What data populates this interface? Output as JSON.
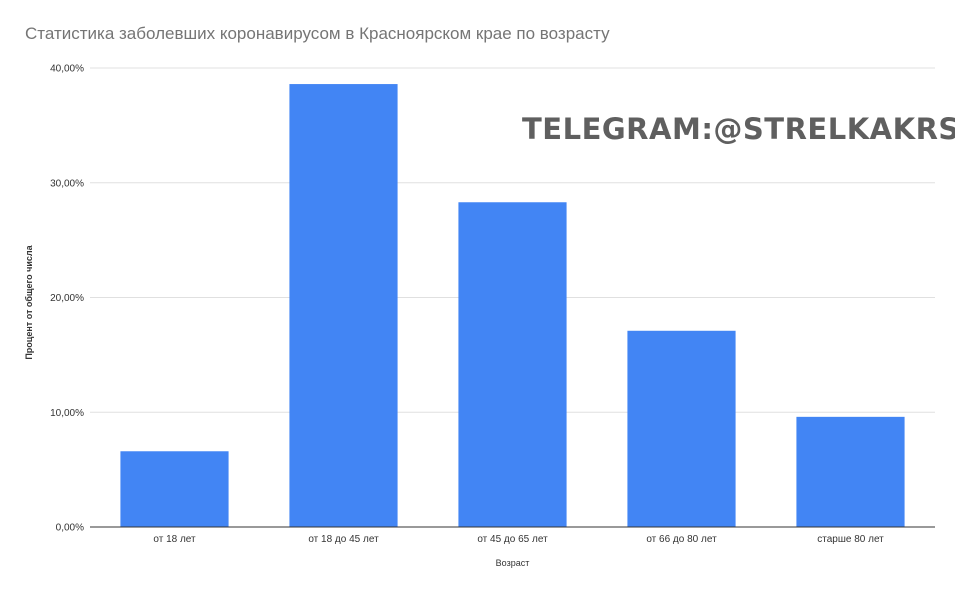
{
  "chart_data": {
    "type": "bar",
    "title": "Статистика заболевших коронавирусом в Красноярском крае по возрасту",
    "watermark": "TELEGRAM:@STRELKAKRSK",
    "xlabel": "Возраст",
    "ylabel": "Процент от общего числа",
    "categories": [
      "от 18 лет",
      "от 18 до 45 лет",
      "от 45 до 65 лет",
      "от 66 до 80 лет",
      "старше 80 лет"
    ],
    "values": [
      6.6,
      38.6,
      28.3,
      17.1,
      9.6
    ],
    "ylim": [
      0,
      40
    ],
    "yticks": [
      0,
      10,
      20,
      30,
      40
    ],
    "ytick_labels": [
      "0,00%",
      "10,00%",
      "20,00%",
      "30,00%",
      "40,00%"
    ],
    "bar_color": "#4285f4",
    "grid": true,
    "legend": "none"
  }
}
